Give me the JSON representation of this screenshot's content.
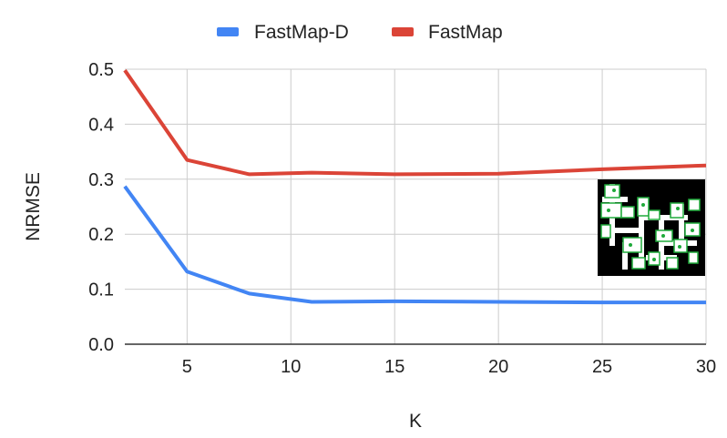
{
  "chart_data": {
    "type": "line",
    "title": "",
    "xlabel": "K",
    "ylabel": "NRMSE",
    "xlim": [
      2,
      30
    ],
    "ylim": [
      0,
      0.5
    ],
    "xticks": [
      5,
      10,
      15,
      20,
      25,
      30
    ],
    "yticks": [
      "0.0",
      "0.1",
      "0.2",
      "0.3",
      "0.4",
      "0.5"
    ],
    "grid": true,
    "legend_position": "top",
    "series": [
      {
        "name": "FastMap-D",
        "color": "#4285f4",
        "x": [
          2,
          5,
          8,
          11,
          15,
          20,
          25,
          30
        ],
        "y": [
          0.287,
          0.132,
          0.092,
          0.077,
          0.078,
          0.077,
          0.076,
          0.076
        ]
      },
      {
        "name": "FastMap",
        "color": "#db4437",
        "x": [
          2,
          5,
          8,
          11,
          15,
          20,
          25,
          30
        ],
        "y": [
          0.498,
          0.335,
          0.309,
          0.312,
          0.309,
          0.31,
          0.318,
          0.325
        ]
      }
    ],
    "inset_image": "map-thumbnail"
  }
}
